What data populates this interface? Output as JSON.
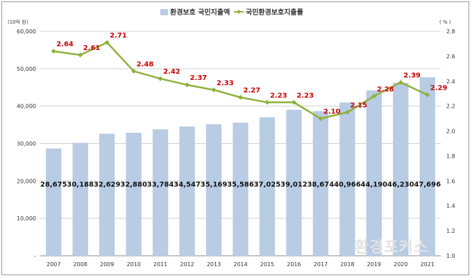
{
  "chart_data": {
    "type": "bar+line",
    "categories": [
      "2007",
      "2008",
      "2009",
      "2010",
      "2011",
      "2012",
      "2013",
      "2014",
      "2015",
      "2016",
      "2017",
      "2018",
      "2019",
      "2020",
      "2021"
    ],
    "series": [
      {
        "name": "환경보호 국민지출액",
        "type": "bar",
        "axis": "left",
        "color": "#b8cce4",
        "values": [
          28675,
          30188,
          32629,
          32880,
          33784,
          34547,
          35169,
          35586,
          37025,
          39012,
          38674,
          40966,
          44190,
          46230,
          47696
        ],
        "labels": [
          "28,675",
          "30,188",
          "32,629",
          "32,880",
          "33,784",
          "34,547",
          "35,169",
          "35,586",
          "37,025",
          "39,012",
          "38,674",
          "40,966",
          "44,190",
          "46,230",
          "47,696"
        ]
      },
      {
        "name": "국민환경보호지출률",
        "type": "line",
        "axis": "right",
        "color": "#8fb03a",
        "values": [
          2.64,
          2.61,
          2.71,
          2.48,
          2.42,
          2.37,
          2.33,
          2.27,
          2.23,
          2.23,
          2.1,
          2.15,
          2.28,
          2.39,
          2.29
        ],
        "labels": [
          "2.64",
          "2.61",
          "2.71",
          "2.48",
          "2.42",
          "2.37",
          "2.33",
          "2.27",
          "2.23",
          "2.23",
          "2.10",
          "2.15",
          "2.28",
          "2.39",
          "2.29"
        ]
      }
    ],
    "left_axis": {
      "unit": "(10억 원)",
      "ylim": [
        0,
        60000
      ],
      "ticks": [
        "-",
        "10,000",
        "20,000",
        "30,000",
        "40,000",
        "50,000",
        "60,000"
      ]
    },
    "right_axis": {
      "unit": "( % )",
      "ylim": [
        1.0,
        2.8
      ],
      "ticks": [
        "1.0",
        "1.2",
        "1.4",
        "1.6",
        "1.8",
        "2.0",
        "2.2",
        "2.4",
        "2.6",
        "2.8"
      ]
    },
    "label_color": "#cc0000",
    "grid": true,
    "legend": "top-center",
    "watermark": "환경포커스"
  }
}
